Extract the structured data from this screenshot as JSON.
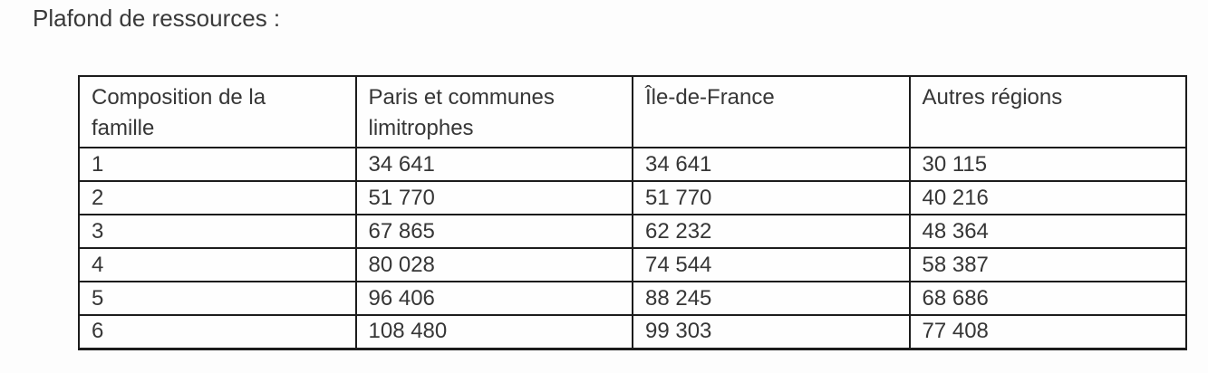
{
  "page": {
    "title": "Plafond de ressources :"
  },
  "table": {
    "columns": [
      "Composition de la famille",
      "Paris et communes limitrophes",
      "Île-de-France",
      "Autres régions"
    ],
    "rows": [
      [
        "1",
        "34 641",
        "34 641",
        "30 115"
      ],
      [
        "2",
        "51 770",
        "51 770",
        "40 216"
      ],
      [
        "3",
        "67 865",
        "62 232",
        "48 364"
      ],
      [
        "4",
        "80 028",
        "74 544",
        "58 387"
      ],
      [
        "5",
        "96 406",
        "88 245",
        "68 686"
      ],
      [
        "6",
        "108 480",
        "99 303",
        "77 408"
      ]
    ]
  },
  "colors": {
    "text": "#363636",
    "border": "#1c1c1c",
    "background": "#fdfdfd"
  }
}
